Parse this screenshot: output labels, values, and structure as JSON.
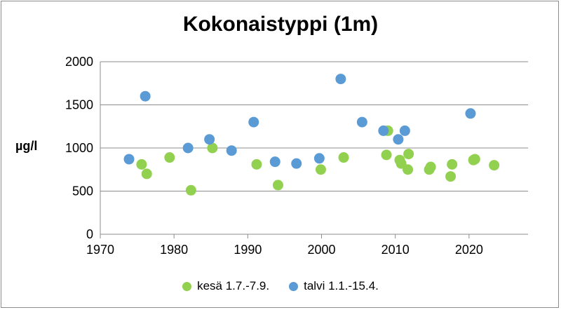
{
  "chart_data": {
    "type": "scatter",
    "title": "Kokonaistyppi (1m)",
    "ylabel": "µg/l",
    "xlabel": "",
    "xlim": [
      1970,
      2028
    ],
    "ylim": [
      0,
      2000
    ],
    "xticks": [
      1970,
      1980,
      1990,
      2000,
      2010,
      2020
    ],
    "yticks": [
      0,
      500,
      1000,
      1500,
      2000
    ],
    "grid": "horizontal",
    "legend": "bottom",
    "series": [
      {
        "name": "kesä 1.7.-7.9.",
        "color": "#92d050",
        "points": [
          [
            1975.6,
            810
          ],
          [
            1976.3,
            700
          ],
          [
            1979.4,
            890
          ],
          [
            1982.3,
            510
          ],
          [
            1985.2,
            1000
          ],
          [
            1991.2,
            810
          ],
          [
            1994.1,
            570
          ],
          [
            1999.9,
            750
          ],
          [
            2003.0,
            890
          ],
          [
            2008.8,
            920
          ],
          [
            2009.0,
            1200
          ],
          [
            2010.6,
            860
          ],
          [
            2010.8,
            820
          ],
          [
            2011.7,
            750
          ],
          [
            2011.8,
            930
          ],
          [
            2014.6,
            750
          ],
          [
            2014.8,
            780
          ],
          [
            2017.5,
            670
          ],
          [
            2017.7,
            810
          ],
          [
            2020.6,
            860
          ],
          [
            2020.8,
            870
          ],
          [
            2023.4,
            800
          ]
        ]
      },
      {
        "name": "talvi 1.1.-15.4.",
        "color": "#5b9bd5",
        "points": [
          [
            1973.9,
            870
          ],
          [
            1976.1,
            1600
          ],
          [
            1981.9,
            1000
          ],
          [
            1984.8,
            1100
          ],
          [
            1987.8,
            970
          ],
          [
            1990.8,
            1300
          ],
          [
            1993.7,
            840
          ],
          [
            1996.6,
            820
          ],
          [
            1999.7,
            880
          ],
          [
            2002.6,
            1800
          ],
          [
            2005.5,
            1300
          ],
          [
            2008.4,
            1200
          ],
          [
            2010.4,
            1100
          ],
          [
            2011.3,
            1200
          ],
          [
            2020.2,
            1400
          ]
        ]
      }
    ]
  }
}
